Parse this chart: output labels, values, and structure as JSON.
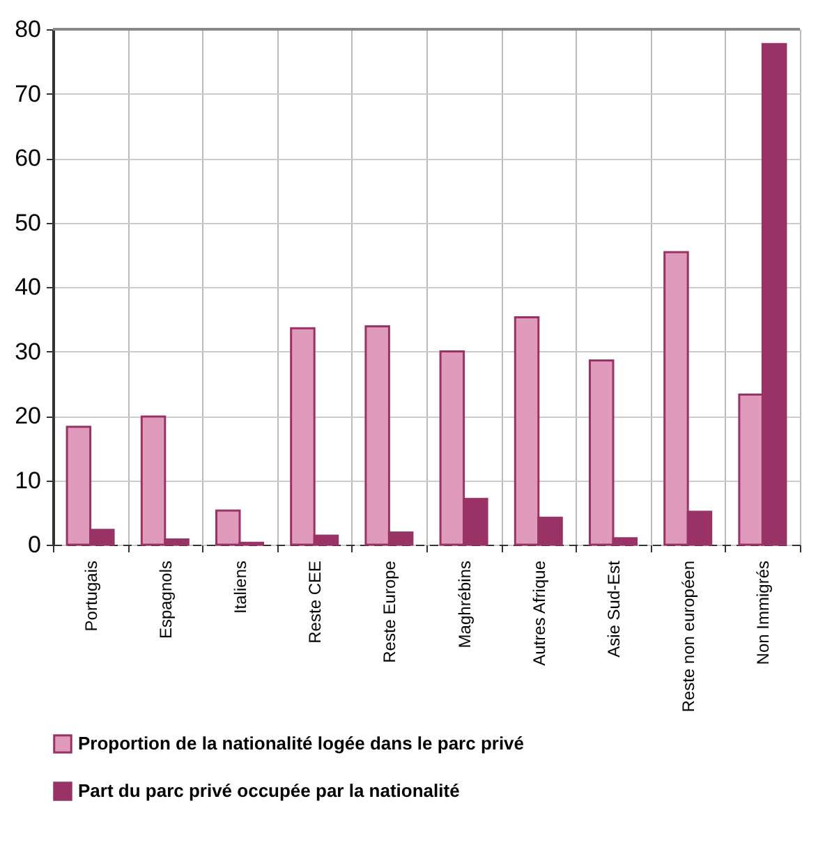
{
  "chart_data": {
    "type": "bar",
    "categories": [
      "Portugais",
      "Espagnols",
      "Italiens",
      "Reste CEE",
      "Reste Europe",
      "Maghrébins",
      "Autres Afrique",
      "Asie Sud-Est",
      "Reste non européen",
      "Non Immigrés"
    ],
    "series": [
      {
        "name": "Proportion de la nationalité logée dans le parc privé",
        "color": "#e09abb",
        "values": [
          18.3,
          19.9,
          5.3,
          33.6,
          33.9,
          30.0,
          35.3,
          28.6,
          45.4,
          23.3
        ]
      },
      {
        "name": "Part du parc privé occupée par la nationalité",
        "color": "#993366",
        "values": [
          2.3,
          0.8,
          0.3,
          1.4,
          1.9,
          7.1,
          4.2,
          1.0,
          5.1,
          77.7
        ]
      }
    ],
    "ylim": [
      0,
      80
    ],
    "yticks": [
      0,
      10,
      20,
      30,
      40,
      50,
      60,
      70,
      80
    ],
    "grid": true,
    "legend": "bottom"
  }
}
